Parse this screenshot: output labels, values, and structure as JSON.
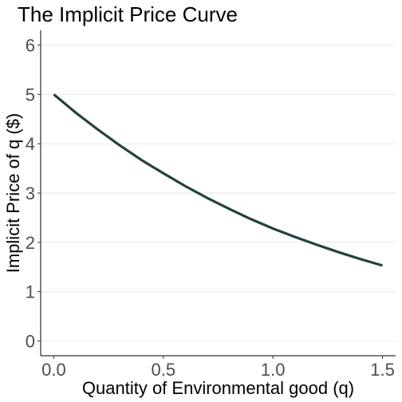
{
  "chart_data": {
    "type": "line",
    "title": "The Implicit Price Curve",
    "xlabel": "Quantity of Environmental good (q)",
    "ylabel": "Implicit Price of q ($)",
    "xlim": [
      -0.06,
      1.56
    ],
    "ylim": [
      -0.3,
      6.3
    ],
    "x_ticks": [
      0.0,
      0.5,
      1.0,
      1.5
    ],
    "x_tick_labels": [
      "0.0",
      "0.5",
      "1.0",
      "1.5"
    ],
    "y_ticks": [
      0,
      1,
      2,
      3,
      4,
      5,
      6
    ],
    "y_tick_labels": [
      "0",
      "1",
      "2",
      "3",
      "4",
      "5",
      "6"
    ],
    "grid": "horizontal major only",
    "legend": "none",
    "series": [
      {
        "color": "#23423f",
        "x": [
          0.0,
          0.1,
          0.2,
          0.3,
          0.4,
          0.5,
          0.6,
          0.7,
          0.8,
          0.9,
          1.0,
          1.1,
          1.2,
          1.3,
          1.4,
          1.5
        ],
        "y": [
          5.0,
          4.63,
          4.29,
          3.97,
          3.67,
          3.4,
          3.14,
          2.9,
          2.68,
          2.47,
          2.28,
          2.11,
          1.95,
          1.8,
          1.66,
          1.53
        ]
      }
    ]
  }
}
